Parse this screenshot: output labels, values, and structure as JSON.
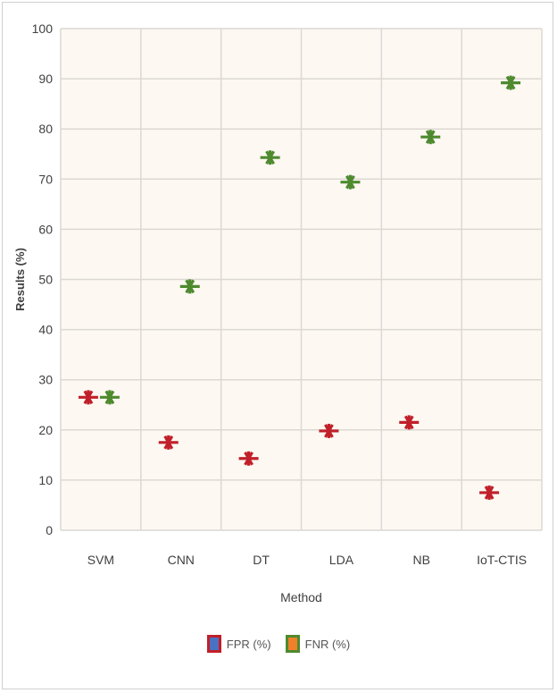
{
  "chart_data": {
    "type": "scatter",
    "title": "",
    "xlabel": "Method",
    "ylabel": "Results (%)",
    "categories": [
      "SVM",
      "CNN",
      "DT",
      "LDA",
      "NB",
      "IoT-CTIS"
    ],
    "ylim": [
      0,
      100
    ],
    "yticks": [
      0,
      10,
      20,
      30,
      40,
      50,
      60,
      70,
      80,
      90,
      100
    ],
    "grid": true,
    "legend_position": "bottom",
    "series": [
      {
        "name": "FPR (%)",
        "values": [
          26.5,
          17.5,
          14.3,
          19.8,
          21.5,
          7.5
        ],
        "color": "#c0202a",
        "legend_fill": "#4a72c4"
      },
      {
        "name": "FNR (%)",
        "values": [
          26.5,
          48.6,
          74.3,
          69.4,
          78.4,
          89.2
        ],
        "color": "#4e8a2e",
        "legend_fill": "#f0802a"
      }
    ],
    "plot_background": "#fdf8f2"
  }
}
